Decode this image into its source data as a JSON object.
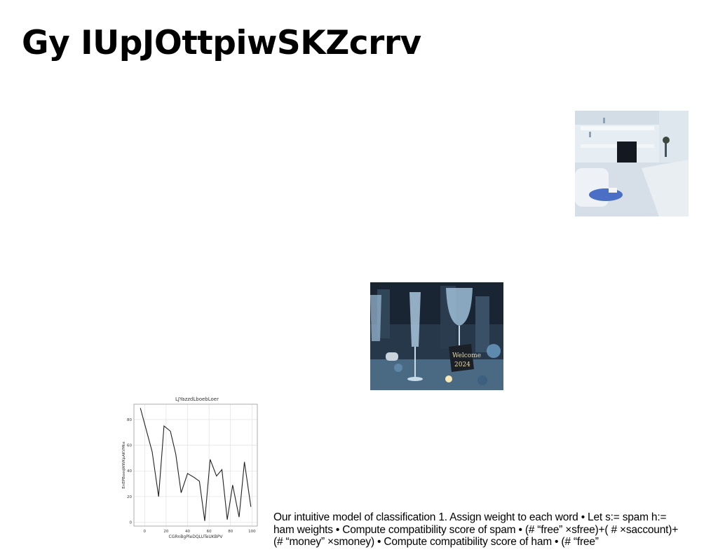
{
  "slide": {
    "title": "Gy IUpJOttpiwSKZcrrv",
    "body": "Our intuitive model of classification 1. Assign weight to each word • Let s:= spam h:= ham weights • Compute compatibility score of spam • (# “free” ×sfree)+( # ×saccount)+(# “money” ×smoney) • Compute compatibility score of ham • (# “free”"
  },
  "images": [
    {
      "name": "living-room-photo",
      "icon": "living-room-photo"
    },
    {
      "name": "champagne-glasses-photo",
      "icon": "champagne-glasses-photo",
      "sign_text": "Welcome 2024"
    }
  ],
  "chart_data": {
    "type": "line",
    "title": "LJYazzdLboebLoer",
    "xlabel": "CGRnBgPleDQLUTeUKBPV",
    "ylabel": "EnEPBoeqWWKpAKVMte",
    "xlim": [
      -10,
      105
    ],
    "ylim": [
      -3,
      92
    ],
    "xticks": [
      0,
      20,
      40,
      60,
      80,
      100
    ],
    "yticks": [
      0,
      20,
      40,
      60,
      80
    ],
    "grid": true,
    "series": [
      {
        "x": [
          -4,
          7,
          13,
          18,
          24,
          29,
          34,
          40,
          46,
          51,
          56,
          61,
          67,
          72,
          77,
          82,
          88,
          93,
          99
        ],
        "y": [
          89,
          55,
          20,
          75,
          71,
          53,
          23,
          38,
          35,
          32,
          1,
          49,
          36,
          41,
          2,
          29,
          4,
          47,
          12
        ],
        "color": "#222222"
      }
    ]
  }
}
